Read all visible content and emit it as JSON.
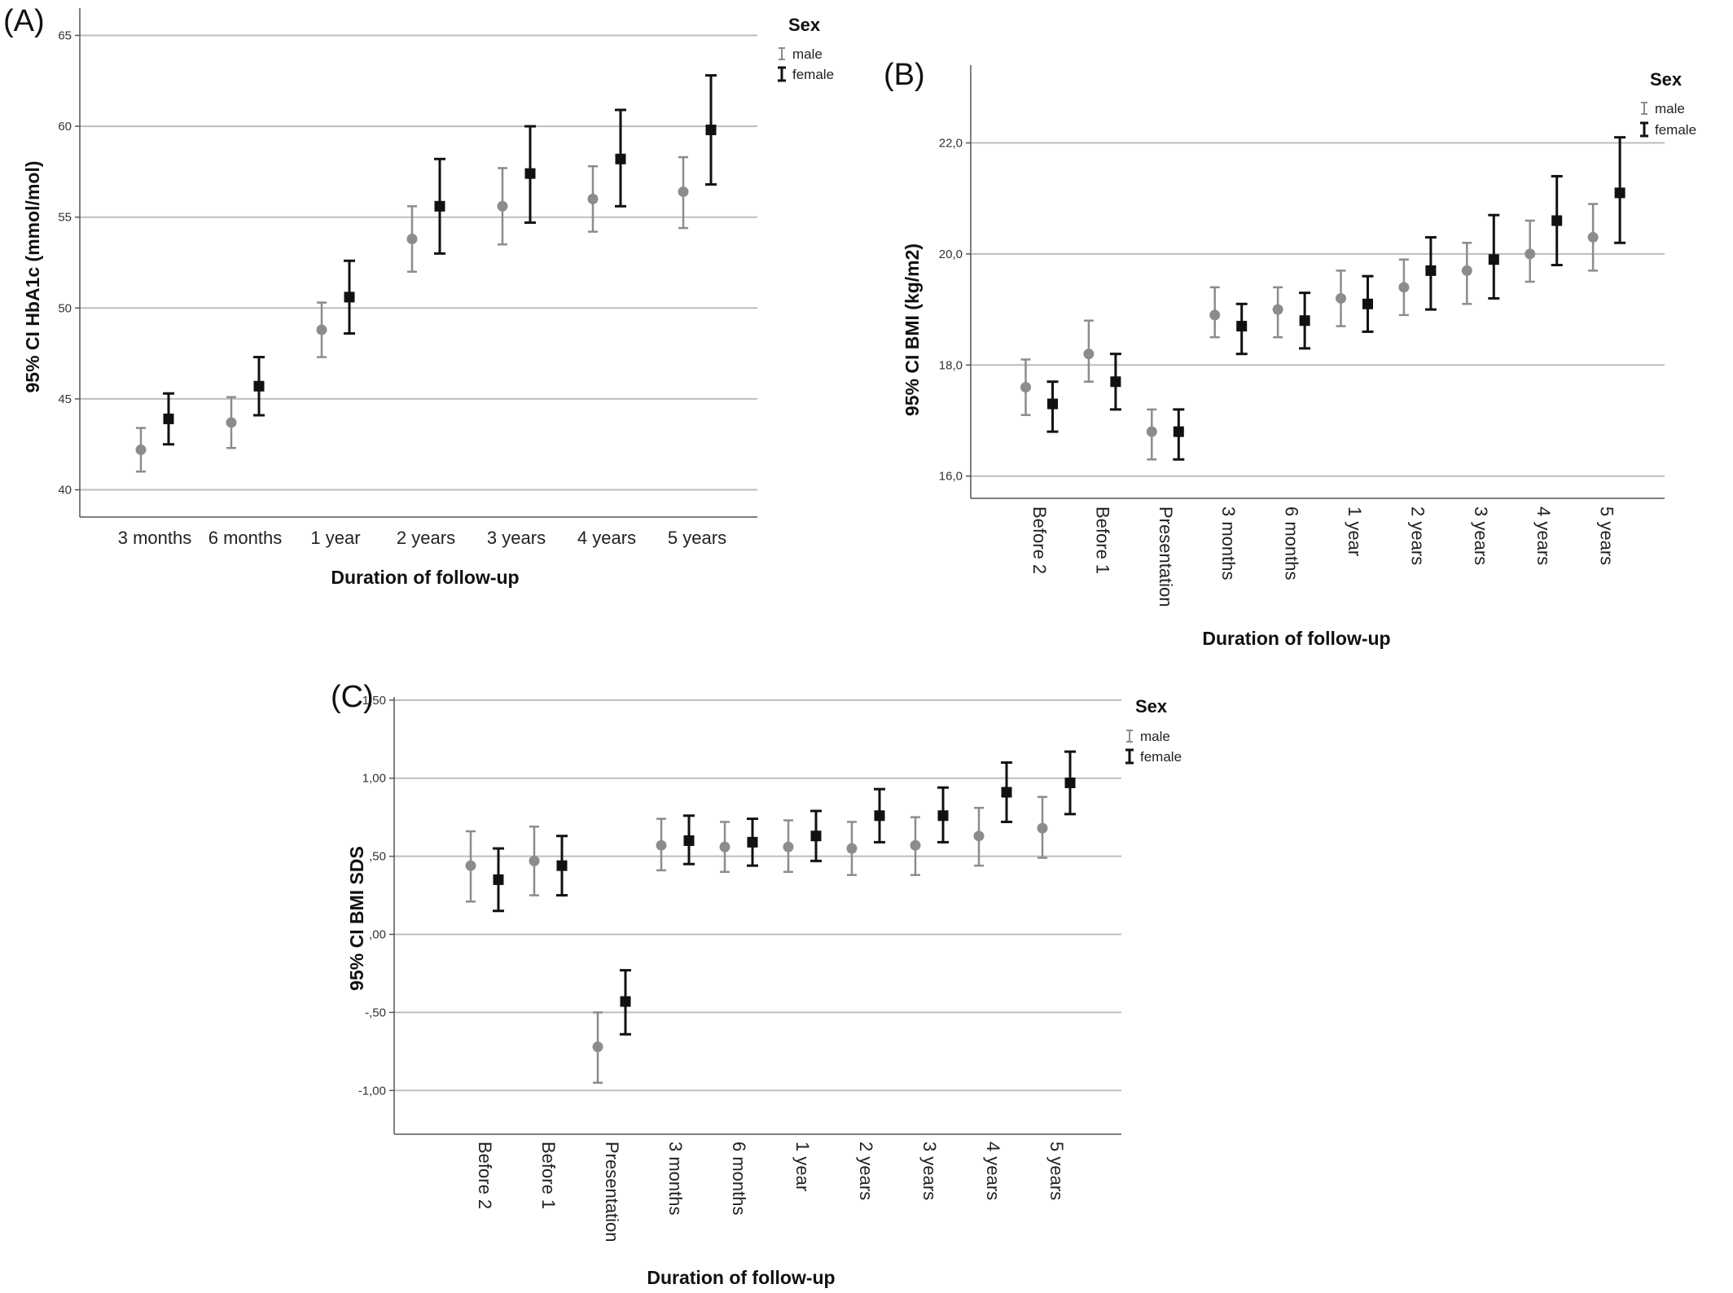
{
  "chart_data": [
    {
      "panel": "(A)",
      "type": "scatter",
      "subtype": "error-bar",
      "xlabel": "Duration of follow-up",
      "ylabel": "95% CI HbA1c (mmol/mol)",
      "ylim": [
        38.5,
        66.5
      ],
      "yticks": [
        "40",
        "45",
        "50",
        "55",
        "60",
        "65"
      ],
      "categories": [
        "3 months",
        "6 months",
        "1 year",
        "2 years",
        "3 years",
        "4 years",
        "5 years"
      ],
      "legend": {
        "title": "Sex",
        "position": "top-right",
        "entries": [
          "male",
          "female"
        ]
      },
      "grid": "horizontal",
      "series": [
        {
          "name": "male",
          "color": "#8c8c8c",
          "marker": "circle",
          "mean": [
            42.2,
            43.7,
            48.8,
            53.8,
            55.6,
            56.0,
            56.4
          ],
          "lower": [
            41.0,
            42.3,
            47.3,
            52.0,
            53.5,
            54.2,
            54.4
          ],
          "upper": [
            43.4,
            45.1,
            50.3,
            55.6,
            57.7,
            57.8,
            58.3
          ]
        },
        {
          "name": "female",
          "color": "#111111",
          "marker": "square",
          "mean": [
            43.9,
            45.7,
            50.6,
            55.6,
            57.4,
            58.2,
            59.8
          ],
          "lower": [
            42.5,
            44.1,
            48.6,
            53.0,
            54.7,
            55.6,
            56.8
          ],
          "upper": [
            45.3,
            47.3,
            52.6,
            58.2,
            60.0,
            60.9,
            62.8
          ]
        }
      ]
    },
    {
      "panel": "(B)",
      "type": "scatter",
      "subtype": "error-bar",
      "xlabel": "Duration of follow-up",
      "ylabel": "95% CI BMI (kg/m2)",
      "ylim": [
        15.6,
        23.4
      ],
      "yticks": [
        "16,0",
        "18,0",
        "20,0",
        "22,0"
      ],
      "categories": [
        "Before 2",
        "Before 1",
        "Presentation",
        "3 months",
        "6 months",
        "1 year",
        "2 years",
        "3 years",
        "4 years",
        "5 years"
      ],
      "legend": {
        "title": "Sex",
        "position": "top-right",
        "entries": [
          "male",
          "female"
        ]
      },
      "grid": "horizontal",
      "series": [
        {
          "name": "male",
          "color": "#8c8c8c",
          "marker": "circle",
          "mean": [
            17.6,
            18.2,
            16.8,
            18.9,
            19.0,
            19.2,
            19.4,
            19.7,
            20.0,
            20.3
          ],
          "lower": [
            17.1,
            17.7,
            16.3,
            18.5,
            18.5,
            18.7,
            18.9,
            19.1,
            19.5,
            19.7
          ],
          "upper": [
            18.1,
            18.8,
            17.2,
            19.4,
            19.4,
            19.7,
            19.9,
            20.2,
            20.6,
            20.9
          ]
        },
        {
          "name": "female",
          "color": "#111111",
          "marker": "square",
          "mean": [
            17.3,
            17.7,
            16.8,
            18.7,
            18.8,
            19.1,
            19.7,
            19.9,
            20.6,
            21.1
          ],
          "lower": [
            16.8,
            17.2,
            16.3,
            18.2,
            18.3,
            18.6,
            19.0,
            19.2,
            19.8,
            20.2
          ],
          "upper": [
            17.7,
            18.2,
            17.2,
            19.1,
            19.3,
            19.6,
            20.3,
            20.7,
            21.4,
            22.1
          ]
        }
      ]
    },
    {
      "panel": "(C)",
      "type": "scatter",
      "subtype": "error-bar",
      "xlabel": "Duration of follow-up",
      "ylabel": "95% CI BMI SDS",
      "ylim": [
        -1.28,
        1.52
      ],
      "yticks": [
        "-1,00",
        "-,50",
        ",00",
        ",50",
        "1,00",
        "1,50"
      ],
      "categories": [
        "Before 2",
        "Before 1",
        "Presentation",
        "3 months",
        "6 months",
        "1 year",
        "2 years",
        "3 years",
        "4 years",
        "5 years"
      ],
      "legend": {
        "title": "Sex",
        "position": "top-right",
        "entries": [
          "male",
          "female"
        ]
      },
      "grid": "horizontal",
      "series": [
        {
          "name": "male",
          "color": "#8c8c8c",
          "marker": "circle",
          "mean": [
            0.44,
            0.47,
            -0.72,
            0.57,
            0.56,
            0.56,
            0.55,
            0.57,
            0.63,
            0.68
          ],
          "lower": [
            0.21,
            0.25,
            -0.95,
            0.41,
            0.4,
            0.4,
            0.38,
            0.38,
            0.44,
            0.49
          ],
          "upper": [
            0.66,
            0.69,
            -0.5,
            0.74,
            0.72,
            0.73,
            0.72,
            0.75,
            0.81,
            0.88
          ]
        },
        {
          "name": "female",
          "color": "#111111",
          "marker": "square",
          "mean": [
            0.35,
            0.44,
            -0.43,
            0.6,
            0.59,
            0.63,
            0.76,
            0.76,
            0.91,
            0.97
          ],
          "lower": [
            0.15,
            0.25,
            -0.64,
            0.45,
            0.44,
            0.47,
            0.59,
            0.59,
            0.72,
            0.77
          ],
          "upper": [
            0.55,
            0.63,
            -0.23,
            0.76,
            0.74,
            0.79,
            0.93,
            0.94,
            1.1,
            1.17
          ]
        }
      ]
    }
  ]
}
